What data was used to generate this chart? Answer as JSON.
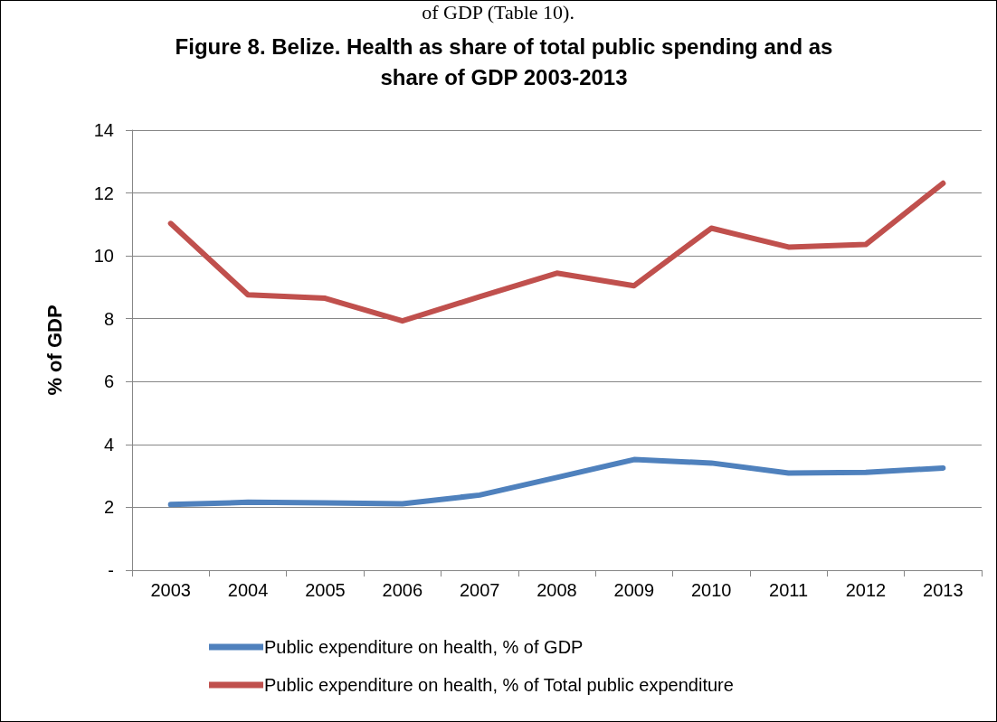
{
  "chart_data": {
    "type": "line",
    "title": "Figure 8. Belize. Health as share of total public spending and as\nshare of GDP 2003-2013",
    "ylabel": "% of GDP",
    "annotations": [
      "of GDP (Table 10)."
    ],
    "categories": [
      "2003",
      "2004",
      "2005",
      "2006",
      "2007",
      "2008",
      "2009",
      "2010",
      "2011",
      "2012",
      "2013"
    ],
    "series": [
      {
        "name": "Public expenditure on health, % of GDP",
        "color": "#4f81bd",
        "values": [
          2.09,
          2.16,
          2.14,
          2.11,
          2.39,
          2.95,
          3.52,
          3.41,
          3.09,
          3.11,
          3.25
        ]
      },
      {
        "name": "Public expenditure on health, % of Total public expenditure",
        "color": "#c0504d",
        "values": [
          11.03,
          8.76,
          8.65,
          7.93,
          8.7,
          9.45,
          9.05,
          10.88,
          10.28,
          10.36,
          12.31
        ]
      }
    ],
    "ylim": [
      0,
      14
    ],
    "yticks": [
      {
        "value": 0,
        "label": "-"
      },
      2,
      4,
      6,
      8,
      10,
      12,
      14
    ],
    "grid": "y",
    "legend": "bottom",
    "marker": "none",
    "line_style": "solid"
  }
}
